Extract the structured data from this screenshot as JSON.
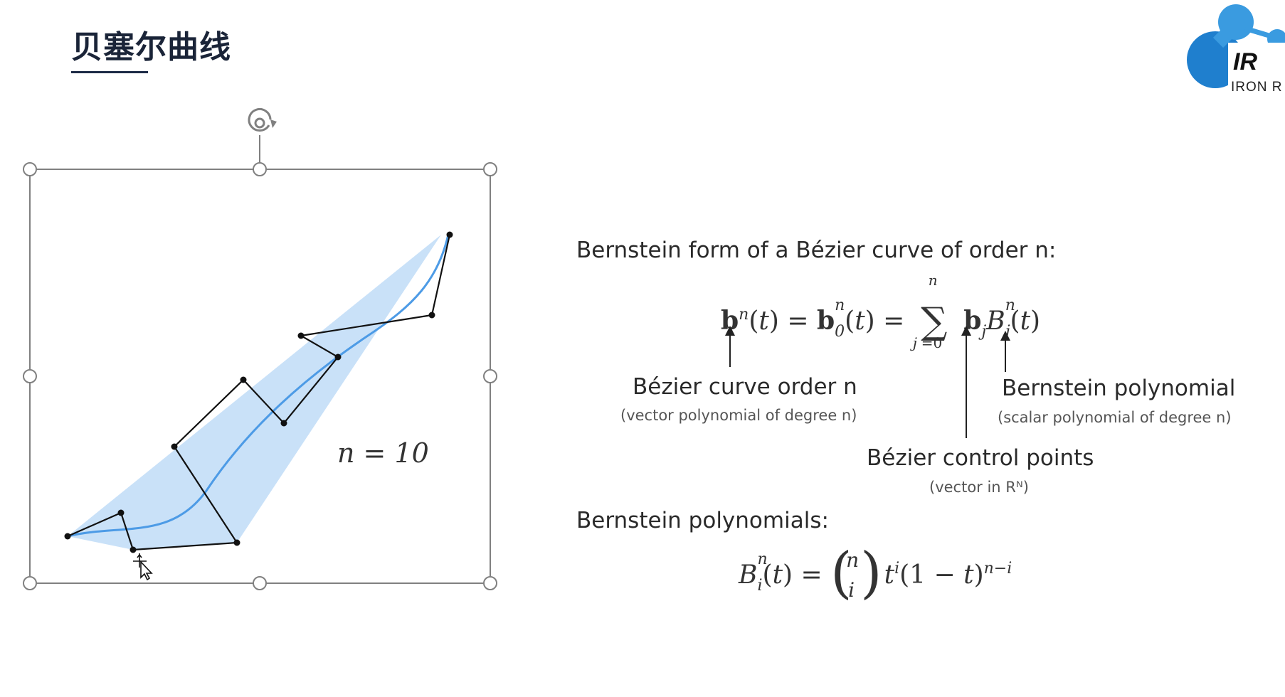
{
  "slide": {
    "title": "贝塞尔曲线"
  },
  "logo": {
    "mark": "IR",
    "name": "IRON R"
  },
  "figure": {
    "label": "n = 10",
    "colors": {
      "hull_fill": "#c9e1f8",
      "curve": "#4d9be6",
      "polygon": "#111111",
      "selection": "#7a7a7a"
    }
  },
  "formula": {
    "heading": "Bernstein form of a Bézier curve of order n:",
    "annot_order": "Bézier curve order n",
    "annot_order_sub": "(vector polynomial of degree n)",
    "annot_control": "Bézier control points",
    "annot_control_sub": "(vector in Rᴺ)",
    "annot_bernstein": "Bernstein polynomial",
    "annot_bernstein_sub": "(scalar polynomial of degree n)",
    "heading2": "Bernstein polynomials:"
  }
}
